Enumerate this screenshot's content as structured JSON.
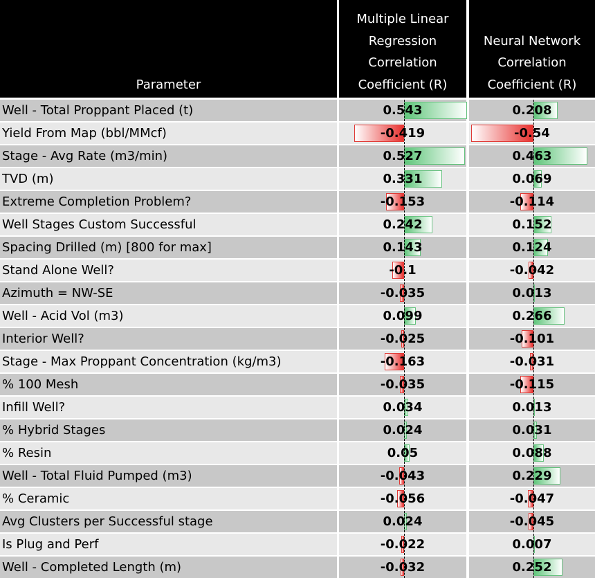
{
  "headers": {
    "parameter": "Parameter",
    "mlr": "Multiple Linear\nRegression\nCorrelation\nCoefficient (R)",
    "nn": "Neural Network\nCorrelation\nCoefficient (R)"
  },
  "colors": {
    "header_bg": "#000000",
    "row_dark": "#c8c8c8",
    "row_light": "#e8e8e8",
    "positive_bar": "#5fc57a",
    "negative_bar": "#e8312f"
  },
  "chart_data": {
    "type": "table",
    "columns": [
      "Parameter",
      "Multiple Linear Regression Correlation Coefficient (R)",
      "Neural Network Correlation Coefficient (R)"
    ],
    "rows": [
      {
        "parameter": "Well - Total Proppant Placed (t)",
        "mlr": 0.543,
        "nn": 0.208
      },
      {
        "parameter": "Yield From Map (bbl/MMcf)",
        "mlr": -0.419,
        "nn": -0.54
      },
      {
        "parameter": "Stage - Avg Rate (m3/min)",
        "mlr": 0.527,
        "nn": 0.463
      },
      {
        "parameter": "TVD (m)",
        "mlr": 0.331,
        "nn": 0.069
      },
      {
        "parameter": "Extreme Completion Problem?",
        "mlr": -0.153,
        "nn": -0.114
      },
      {
        "parameter": "Well Stages Custom Successful",
        "mlr": 0.242,
        "nn": 0.152
      },
      {
        "parameter": "Spacing Drilled (m) [800 for max]",
        "mlr": 0.143,
        "nn": 0.124
      },
      {
        "parameter": "Stand Alone Well?",
        "mlr": -0.1,
        "nn": -0.042
      },
      {
        "parameter": "Azimuth = NW-SE",
        "mlr": -0.035,
        "nn": 0.013
      },
      {
        "parameter": "Well - Acid Vol (m3)",
        "mlr": 0.099,
        "nn": 0.266
      },
      {
        "parameter": "Interior Well?",
        "mlr": -0.025,
        "nn": -0.101
      },
      {
        "parameter": "Stage - Max Proppant Concentration (kg/m3)",
        "mlr": -0.163,
        "nn": -0.031
      },
      {
        "parameter": "% 100 Mesh",
        "mlr": -0.035,
        "nn": -0.115
      },
      {
        "parameter": "Infill Well?",
        "mlr": 0.034,
        "nn": 0.013
      },
      {
        "parameter": "% Hybrid Stages",
        "mlr": 0.024,
        "nn": 0.031
      },
      {
        "parameter": "% Resin",
        "mlr": 0.05,
        "nn": 0.088
      },
      {
        "parameter": "Well - Total Fluid Pumped (m3)",
        "mlr": -0.043,
        "nn": 0.229
      },
      {
        "parameter": "% Ceramic",
        "mlr": -0.056,
        "nn": -0.047
      },
      {
        "parameter": "Avg Clusters per Successful stage",
        "mlr": 0.024,
        "nn": -0.045
      },
      {
        "parameter": "Is Plug and Perf",
        "mlr": -0.022,
        "nn": 0.007
      },
      {
        "parameter": "Well - Completed Length (m)",
        "mlr": -0.032,
        "nn": 0.252
      }
    ]
  }
}
